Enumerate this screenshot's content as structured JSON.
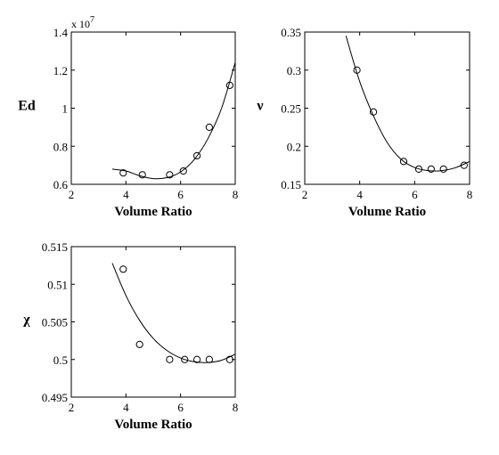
{
  "chart_data": [
    {
      "id": "ed",
      "type": "scatter",
      "ylabel": "Ed",
      "xlabel": "Volume Ratio",
      "exponent_label": "x 10",
      "exponent_power": "7",
      "xlim": [
        2,
        8
      ],
      "ylim": [
        0.6,
        1.4
      ],
      "xticks": [
        2,
        4,
        6,
        8
      ],
      "yticks": [
        0.6,
        0.8,
        1,
        1.2,
        1.4
      ],
      "ytick_labels": [
        "0.6",
        "0.8",
        "1",
        "1.2",
        "1.4"
      ],
      "grid": false,
      "points": {
        "x": [
          3.9,
          4.6,
          5.6,
          6.1,
          6.6,
          7.05,
          7.8
        ],
        "y": [
          0.66,
          0.65,
          0.65,
          0.67,
          0.75,
          0.9,
          1.12
        ]
      },
      "curve": {
        "x": [
          3.5,
          4.0,
          4.5,
          5.0,
          5.5,
          6.0,
          6.5,
          7.0,
          7.5,
          8.0
        ],
        "y": [
          0.68,
          0.67,
          0.645,
          0.63,
          0.635,
          0.665,
          0.73,
          0.84,
          1.0,
          1.24
        ]
      }
    },
    {
      "id": "nu",
      "type": "scatter",
      "ylabel": "ν",
      "xlabel": "Volume Ratio",
      "xlim": [
        2,
        8
      ],
      "ylim": [
        0.15,
        0.35
      ],
      "xticks": [
        2,
        4,
        6,
        8
      ],
      "yticks": [
        0.15,
        0.2,
        0.25,
        0.3,
        0.35
      ],
      "ytick_labels": [
        "0.15",
        "0.2",
        "0.25",
        "0.3",
        "0.35"
      ],
      "grid": false,
      "points": {
        "x": [
          3.9,
          4.5,
          5.6,
          6.15,
          6.6,
          7.05,
          7.8
        ],
        "y": [
          0.3,
          0.245,
          0.18,
          0.17,
          0.17,
          0.17,
          0.175
        ]
      },
      "curve": {
        "x": [
          3.5,
          4.0,
          4.5,
          5.0,
          5.5,
          6.0,
          6.5,
          7.0,
          7.5,
          8.0
        ],
        "y": [
          0.345,
          0.285,
          0.24,
          0.205,
          0.183,
          0.172,
          0.168,
          0.168,
          0.172,
          0.18
        ]
      }
    },
    {
      "id": "chi",
      "type": "scatter",
      "ylabel": "χ",
      "xlabel": "Volume Ratio",
      "xlim": [
        2,
        8
      ],
      "ylim": [
        0.495,
        0.515
      ],
      "xticks": [
        2,
        4,
        6,
        8
      ],
      "yticks": [
        0.495,
        0.5,
        0.505,
        0.51,
        0.515
      ],
      "ytick_labels": [
        "0.495",
        "0.5",
        "0.505",
        "0.51",
        "0.515"
      ],
      "grid": false,
      "points": {
        "x": [
          3.9,
          4.5,
          5.6,
          6.15,
          6.6,
          7.05,
          7.8
        ],
        "y": [
          0.512,
          0.502,
          0.5,
          0.5,
          0.5,
          0.5,
          0.5
        ]
      },
      "curve": {
        "x": [
          3.5,
          4.0,
          4.5,
          5.0,
          5.5,
          6.0,
          6.5,
          7.0,
          7.5,
          8.0
        ],
        "y": [
          0.5128,
          0.5085,
          0.5052,
          0.5028,
          0.5012,
          0.5002,
          0.4997,
          0.4996,
          0.4999,
          0.5007
        ]
      }
    }
  ]
}
